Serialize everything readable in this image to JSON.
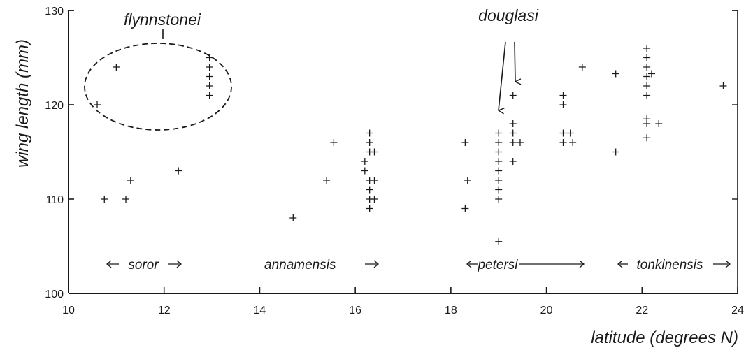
{
  "chart_data": {
    "type": "scatter",
    "title": "",
    "xlabel": "latitude (degrees N)",
    "ylabel": "wing length (mm)",
    "xlim": [
      10,
      24
    ],
    "ylim": [
      100,
      130
    ],
    "x_ticks": [
      10,
      12,
      14,
      16,
      18,
      20,
      22,
      24
    ],
    "y_ticks": [
      100,
      110,
      120,
      130
    ],
    "grid": false,
    "marker": "+",
    "series": [
      {
        "values": [
          {
            "x": 10.6,
            "y": 120
          },
          {
            "x": 11.0,
            "y": 124
          },
          {
            "x": 10.75,
            "y": 110
          },
          {
            "x": 11.2,
            "y": 110
          },
          {
            "x": 11.3,
            "y": 112
          },
          {
            "x": 12.3,
            "y": 113
          },
          {
            "x": 12.95,
            "y": 125
          },
          {
            "x": 12.95,
            "y": 124
          },
          {
            "x": 12.95,
            "y": 123
          },
          {
            "x": 12.95,
            "y": 122
          },
          {
            "x": 12.95,
            "y": 121
          },
          {
            "x": 14.7,
            "y": 108
          },
          {
            "x": 15.4,
            "y": 112
          },
          {
            "x": 15.55,
            "y": 116
          },
          {
            "x": 16.2,
            "y": 114
          },
          {
            "x": 16.2,
            "y": 113
          },
          {
            "x": 16.3,
            "y": 117
          },
          {
            "x": 16.3,
            "y": 116
          },
          {
            "x": 16.3,
            "y": 115
          },
          {
            "x": 16.3,
            "y": 112
          },
          {
            "x": 16.3,
            "y": 111
          },
          {
            "x": 16.3,
            "y": 110
          },
          {
            "x": 16.3,
            "y": 109
          },
          {
            "x": 16.4,
            "y": 115
          },
          {
            "x": 16.4,
            "y": 112
          },
          {
            "x": 16.4,
            "y": 110
          },
          {
            "x": 18.3,
            "y": 116
          },
          {
            "x": 18.35,
            "y": 112
          },
          {
            "x": 18.3,
            "y": 109
          },
          {
            "x": 19.0,
            "y": 117
          },
          {
            "x": 19.0,
            "y": 116
          },
          {
            "x": 19.0,
            "y": 115
          },
          {
            "x": 19.0,
            "y": 114
          },
          {
            "x": 19.0,
            "y": 113
          },
          {
            "x": 19.0,
            "y": 112
          },
          {
            "x": 19.0,
            "y": 111
          },
          {
            "x": 19.0,
            "y": 110
          },
          {
            "x": 19.0,
            "y": 105.5
          },
          {
            "x": 19.3,
            "y": 121
          },
          {
            "x": 19.3,
            "y": 118
          },
          {
            "x": 19.3,
            "y": 117
          },
          {
            "x": 19.3,
            "y": 116
          },
          {
            "x": 19.3,
            "y": 114
          },
          {
            "x": 19.45,
            "y": 116
          },
          {
            "x": 20.35,
            "y": 121
          },
          {
            "x": 20.35,
            "y": 120
          },
          {
            "x": 20.35,
            "y": 117
          },
          {
            "x": 20.35,
            "y": 116
          },
          {
            "x": 20.5,
            "y": 117
          },
          {
            "x": 20.55,
            "y": 116
          },
          {
            "x": 20.75,
            "y": 124
          },
          {
            "x": 21.45,
            "y": 123.3
          },
          {
            "x": 21.45,
            "y": 115
          },
          {
            "x": 22.1,
            "y": 126
          },
          {
            "x": 22.1,
            "y": 125
          },
          {
            "x": 22.1,
            "y": 124
          },
          {
            "x": 22.1,
            "y": 123
          },
          {
            "x": 22.1,
            "y": 122
          },
          {
            "x": 22.1,
            "y": 121
          },
          {
            "x": 22.1,
            "y": 118.5
          },
          {
            "x": 22.1,
            "y": 118
          },
          {
            "x": 22.1,
            "y": 116.5
          },
          {
            "x": 22.2,
            "y": 123.3
          },
          {
            "x": 22.35,
            "y": 118
          },
          {
            "x": 23.7,
            "y": 122
          }
        ]
      }
    ],
    "annotations": {
      "flynnstonei": "flynnstonei",
      "douglasi": "douglasi",
      "soror": "soror",
      "annamensis": "annamensis",
      "petersi": "petersi",
      "tonkinensis": "tonkinensis"
    }
  }
}
